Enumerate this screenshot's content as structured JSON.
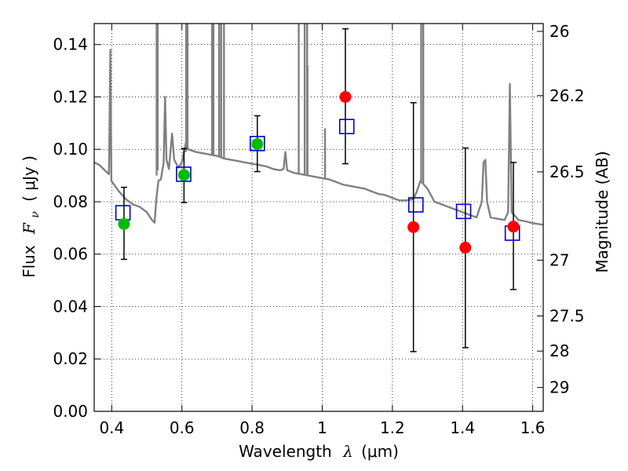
{
  "chart_data": {
    "type": "scatter",
    "title": "",
    "xlabel_text": "Wavelength",
    "xlabel_symbol": "λ",
    "xlabel_unit": "(μm)",
    "ylabel_text": "Flux",
    "ylabel_symbol": "F",
    "ylabel_subscript": "ν",
    "ylabel_unit": "( μJy )",
    "y2label": "Magnitude (AB)",
    "xlim": [
      0.35,
      1.63
    ],
    "ylim": [
      0,
      0.148
    ],
    "xticks": [
      0.4,
      0.6,
      0.8,
      1.0,
      1.2,
      1.4,
      1.6
    ],
    "xtick_labels": [
      "0.4",
      "0.6",
      "0.8",
      "1",
      "1.2",
      "1.4",
      "1.6"
    ],
    "yticks": [
      0,
      0.02,
      0.04,
      0.06,
      0.08,
      0.1,
      0.12,
      0.14
    ],
    "ytick_labels": [
      "0.00",
      "0.02",
      "0.04",
      "0.06",
      "0.08",
      "0.10",
      "0.12",
      "0.14"
    ],
    "mag_ticks": [
      {
        "label": "26",
        "flux": 0.145
      },
      {
        "label": "26.2",
        "flux": 0.1205
      },
      {
        "label": "26.5",
        "flux": 0.0914
      },
      {
        "label": "27",
        "flux": 0.0577
      },
      {
        "label": "27.5",
        "flux": 0.0364
      },
      {
        "label": "28",
        "flux": 0.023
      },
      {
        "label": "29",
        "flux": 0.0091
      }
    ],
    "grid": true,
    "colors": {
      "observed_green": "#00bb00",
      "observed_red": "#ff0000",
      "model_square": "#0000cc",
      "spectrum": "#808080",
      "errorbar": "#000000",
      "grid": "#000000"
    },
    "spectrum": [
      [
        0.35,
        0.095
      ],
      [
        0.365,
        0.094
      ],
      [
        0.38,
        0.092
      ],
      [
        0.392,
        0.0905
      ],
      [
        0.396,
        0.138
      ],
      [
        0.399,
        0.088
      ],
      [
        0.42,
        0.084
      ],
      [
        0.44,
        0.081
      ],
      [
        0.46,
        0.079
      ],
      [
        0.48,
        0.078
      ],
      [
        0.5,
        0.076
      ],
      [
        0.515,
        0.073
      ],
      [
        0.522,
        0.072
      ],
      [
        0.528,
        0.082
      ],
      [
        0.533,
        0.088
      ],
      [
        0.54,
        0.0885
      ],
      [
        0.548,
        0.095
      ],
      [
        0.552,
        0.12
      ],
      [
        0.556,
        0.096
      ],
      [
        0.563,
        0.0925
      ],
      [
        0.572,
        0.106
      ],
      [
        0.578,
        0.096
      ],
      [
        0.59,
        0.093
      ],
      [
        0.6,
        0.095
      ],
      [
        0.612,
        0.103
      ],
      [
        0.618,
        0.1
      ],
      [
        0.64,
        0.099
      ],
      [
        0.66,
        0.0985
      ],
      [
        0.68,
        0.098
      ],
      [
        0.7,
        0.0975
      ],
      [
        0.72,
        0.0965
      ],
      [
        0.74,
        0.096
      ],
      [
        0.76,
        0.0955
      ],
      [
        0.78,
        0.095
      ],
      [
        0.8,
        0.0945
      ],
      [
        0.82,
        0.094
      ],
      [
        0.84,
        0.0935
      ],
      [
        0.86,
        0.0925
      ],
      [
        0.88,
        0.092
      ],
      [
        0.89,
        0.0925
      ],
      [
        0.895,
        0.099
      ],
      [
        0.9,
        0.092
      ],
      [
        0.92,
        0.091
      ],
      [
        0.94,
        0.0905
      ],
      [
        0.96,
        0.09
      ],
      [
        0.98,
        0.0895
      ],
      [
        1.0,
        0.089
      ],
      [
        1.02,
        0.0885
      ],
      [
        1.04,
        0.0875
      ],
      [
        1.06,
        0.0865
      ],
      [
        1.08,
        0.086
      ],
      [
        1.1,
        0.0855
      ],
      [
        1.12,
        0.085
      ],
      [
        1.14,
        0.084
      ],
      [
        1.16,
        0.083
      ],
      [
        1.18,
        0.0825
      ],
      [
        1.2,
        0.0815
      ],
      [
        1.22,
        0.0805
      ],
      [
        1.24,
        0.0805
      ],
      [
        1.26,
        0.081
      ],
      [
        1.27,
        0.084
      ],
      [
        1.28,
        0.088
      ],
      [
        1.3,
        0.085
      ],
      [
        1.32,
        0.08
      ],
      [
        1.34,
        0.079
      ],
      [
        1.36,
        0.078
      ],
      [
        1.38,
        0.077
      ],
      [
        1.4,
        0.076
      ],
      [
        1.42,
        0.075
      ],
      [
        1.44,
        0.074
      ],
      [
        1.455,
        0.08
      ],
      [
        1.46,
        0.095
      ],
      [
        1.465,
        0.096
      ],
      [
        1.47,
        0.08
      ],
      [
        1.48,
        0.074
      ],
      [
        1.5,
        0.0735
      ],
      [
        1.52,
        0.073
      ],
      [
        1.53,
        0.076
      ],
      [
        1.535,
        0.125
      ],
      [
        1.54,
        0.076
      ],
      [
        1.56,
        0.073
      ],
      [
        1.58,
        0.0725
      ],
      [
        1.6,
        0.0718
      ],
      [
        1.63,
        0.0712
      ]
    ],
    "spectrum_spikes": [
      [
        0.528,
        0.09
      ],
      [
        0.531,
        0.092
      ],
      [
        0.612,
        0.099
      ],
      [
        0.616,
        0.1
      ],
      [
        0.686,
        0.098
      ],
      [
        0.69,
        0.098
      ],
      [
        0.706,
        0.0975
      ],
      [
        0.712,
        0.097
      ],
      [
        0.72,
        0.0965
      ],
      [
        0.933,
        0.0905
      ],
      [
        0.95,
        0.09
      ],
      [
        0.957,
        0.0898
      ],
      [
        1.282,
        0.088
      ],
      [
        1.288,
        0.087
      ]
    ],
    "spectrum_midspikes": [
      [
        0.958,
        0.0898,
        0.132
      ],
      [
        1.008,
        0.0888,
        0.108
      ]
    ],
    "observed": [
      {
        "x": 0.435,
        "y": 0.0715,
        "yerr_low": 0.058,
        "yerr_high": 0.0855,
        "color": "green"
      },
      {
        "x": 0.606,
        "y": 0.0902,
        "yerr_low": 0.0797,
        "yerr_high": 0.1003,
        "color": "green"
      },
      {
        "x": 0.815,
        "y": 0.102,
        "yerr_low": 0.0915,
        "yerr_high": 0.1128,
        "color": "green"
      },
      {
        "x": 1.066,
        "y": 0.12,
        "yerr_low": 0.0945,
        "yerr_high": 0.146,
        "color": "red"
      },
      {
        "x": 1.26,
        "y": 0.0703,
        "yerr_low": 0.0228,
        "yerr_high": 0.1178,
        "color": "red"
      },
      {
        "x": 1.408,
        "y": 0.0625,
        "yerr_low": 0.0243,
        "yerr_high": 0.1005,
        "color": "red"
      },
      {
        "x": 1.545,
        "y": 0.0705,
        "yerr_low": 0.0465,
        "yerr_high": 0.095,
        "color": "red"
      }
    ],
    "model": [
      {
        "x": 0.432,
        "y": 0.0758
      },
      {
        "x": 0.605,
        "y": 0.0905
      },
      {
        "x": 0.815,
        "y": 0.1022
      },
      {
        "x": 1.07,
        "y": 0.1087
      },
      {
        "x": 1.267,
        "y": 0.0788
      },
      {
        "x": 1.403,
        "y": 0.0763
      },
      {
        "x": 1.542,
        "y": 0.068
      }
    ]
  }
}
